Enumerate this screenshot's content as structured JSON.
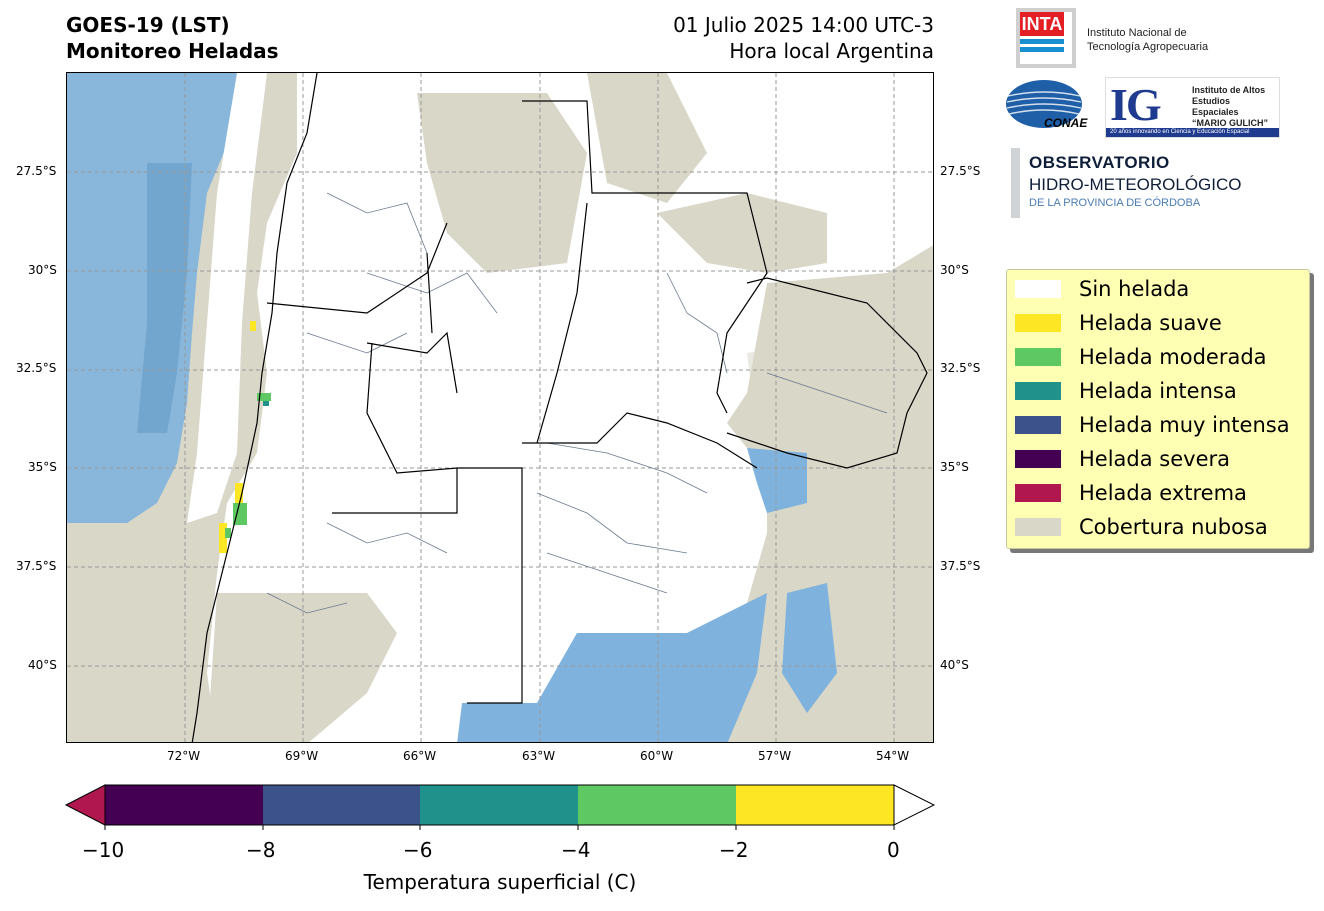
{
  "header": {
    "title_line1": "GOES-19 (LST)",
    "title_line2": "Monitoreo Heladas",
    "date_line1": "01 Julio 2025 14:00 UTC-3",
    "date_line2": "Hora local Argentina"
  },
  "map": {
    "lat_labels": [
      "27.5°S",
      "30°S",
      "32.5°S",
      "35°S",
      "37.5°S",
      "40°S"
    ],
    "lon_labels": [
      "72°W",
      "69°W",
      "66°W",
      "63°W",
      "60°W",
      "57°W",
      "54°W"
    ],
    "colors": {
      "cloud": "#d9d7c8",
      "no_frost": "#ffffff",
      "ocean_temp": "#7fb3dd",
      "border": "#000000",
      "department_lines": "#6b7a90"
    }
  },
  "legend": {
    "items": [
      {
        "label": "Sin helada",
        "color": "#ffffff"
      },
      {
        "label": "Helada suave",
        "color": "#fde725"
      },
      {
        "label": "Helada moderada",
        "color": "#5ec962"
      },
      {
        "label": "Helada intensa",
        "color": "#21918c"
      },
      {
        "label": "Helada muy intensa",
        "color": "#3b528b"
      },
      {
        "label": "Helada severa",
        "color": "#440154"
      },
      {
        "label": "Helada extrema",
        "color": "#b0174f"
      },
      {
        "label": "Cobertura nubosa",
        "color": "#d9d7c8"
      }
    ]
  },
  "colorbar": {
    "title": "Temperatura superficial (C)",
    "ticks": [
      "−10",
      "−8",
      "−6",
      "−4",
      "−2",
      "0"
    ],
    "segments": [
      "#440154",
      "#3b528b",
      "#21918c",
      "#5ec962",
      "#fde725"
    ],
    "under_color": "#b0174f",
    "over_color": "#ffffff"
  },
  "logos": {
    "inta_mark": "INTA",
    "inta_line1": "Instituto Nacional de",
    "inta_line2": "Tecnología Agropecuaria",
    "conae": "CONAE",
    "ig_mark": "IG",
    "ig_line1": "Instituto de Altos",
    "ig_line2": "Estudios Espaciales",
    "ig_line3": "“MARIO GULICH”",
    "ig_band": "20 años innovando en Ciencia y Educación Espacial",
    "obs_line1": "OBSERVATORIO",
    "obs_line2": "HIDRO-METEOROLÓGICO",
    "obs_line3": "DE LA PROVINCIA DE CÓRDOBA"
  }
}
